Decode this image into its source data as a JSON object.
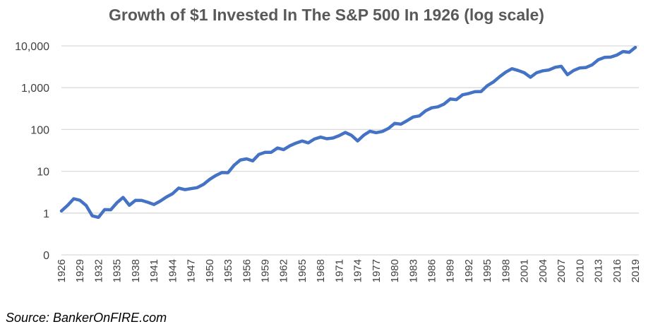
{
  "chart_data": {
    "type": "line",
    "title": "Growth of $1 Invested In The S&P 500 In 1926 (log scale)",
    "xlabel": "",
    "ylabel": "",
    "yscale": "log",
    "ylim": [
      0.1,
      10000
    ],
    "yticks": [
      0.1,
      1,
      10,
      100,
      1000,
      10000
    ],
    "ytick_labels": [
      "0",
      "1",
      "10",
      "100",
      "1,000",
      "10,000"
    ],
    "xtick_labels": [
      "1926",
      "1929",
      "1932",
      "1935",
      "1938",
      "1941",
      "1944",
      "1947",
      "1950",
      "1953",
      "1956",
      "1959",
      "1962",
      "1965",
      "1968",
      "1971",
      "1974",
      "1977",
      "1980",
      "1983",
      "1986",
      "1989",
      "1992",
      "1995",
      "1998",
      "2001",
      "2004",
      "2007",
      "2010",
      "2013",
      "2016",
      "2019"
    ],
    "grid": true,
    "legend": "none",
    "color": "#4472C4",
    "x": [
      1926,
      1927,
      1928,
      1929,
      1930,
      1931,
      1932,
      1933,
      1934,
      1935,
      1936,
      1937,
      1938,
      1939,
      1940,
      1941,
      1942,
      1943,
      1944,
      1945,
      1946,
      1947,
      1948,
      1949,
      1950,
      1951,
      1952,
      1953,
      1954,
      1955,
      1956,
      1957,
      1958,
      1959,
      1960,
      1961,
      1962,
      1963,
      1964,
      1965,
      1966,
      1967,
      1968,
      1969,
      1970,
      1971,
      1972,
      1973,
      1974,
      1975,
      1976,
      1977,
      1978,
      1979,
      1980,
      1981,
      1982,
      1983,
      1984,
      1985,
      1986,
      1987,
      1988,
      1989,
      1990,
      1991,
      1992,
      1993,
      1994,
      1995,
      1996,
      1997,
      1998,
      1999,
      2000,
      2001,
      2002,
      2003,
      2004,
      2005,
      2006,
      2007,
      2008,
      2009,
      2010,
      2011,
      2012,
      2013,
      2014,
      2015,
      2016,
      2017,
      2018,
      2019
    ],
    "values": [
      1.12,
      1.53,
      2.2,
      2.02,
      1.52,
      0.86,
      0.79,
      1.21,
      1.2,
      1.77,
      2.37,
      1.54,
      2.02,
      2.01,
      1.81,
      1.6,
      1.93,
      2.42,
      2.9,
      3.96,
      3.64,
      3.85,
      4.06,
      4.83,
      6.36,
      7.89,
      9.34,
      9.25,
      14.1,
      18.6,
      19.8,
      17.7,
      25.3,
      28.4,
      28.5,
      36.1,
      33,
      40.5,
      47.2,
      53,
      47.7,
      59.1,
      65.7,
      60.1,
      62.5,
      71.4,
      85,
      72.5,
      53.3,
      73.2,
      90.6,
      84.1,
      89.6,
      106,
      140,
      134,
      162,
      199,
      211,
      279,
      330,
      348,
      406,
      535,
      518,
      676,
      727,
      800,
      811,
      1114,
      1371,
      1828,
      2351,
      2846,
      2587,
      2279,
      1775,
      2285,
      2533,
      2658,
      3077,
      3246,
      2045,
      2587,
      2976,
      3039,
      3525,
      4667,
      5306,
      5380,
      6023,
      7338,
      7017,
      9227
    ]
  },
  "footer": {
    "source": "Source: BankerOnFIRE.com"
  }
}
